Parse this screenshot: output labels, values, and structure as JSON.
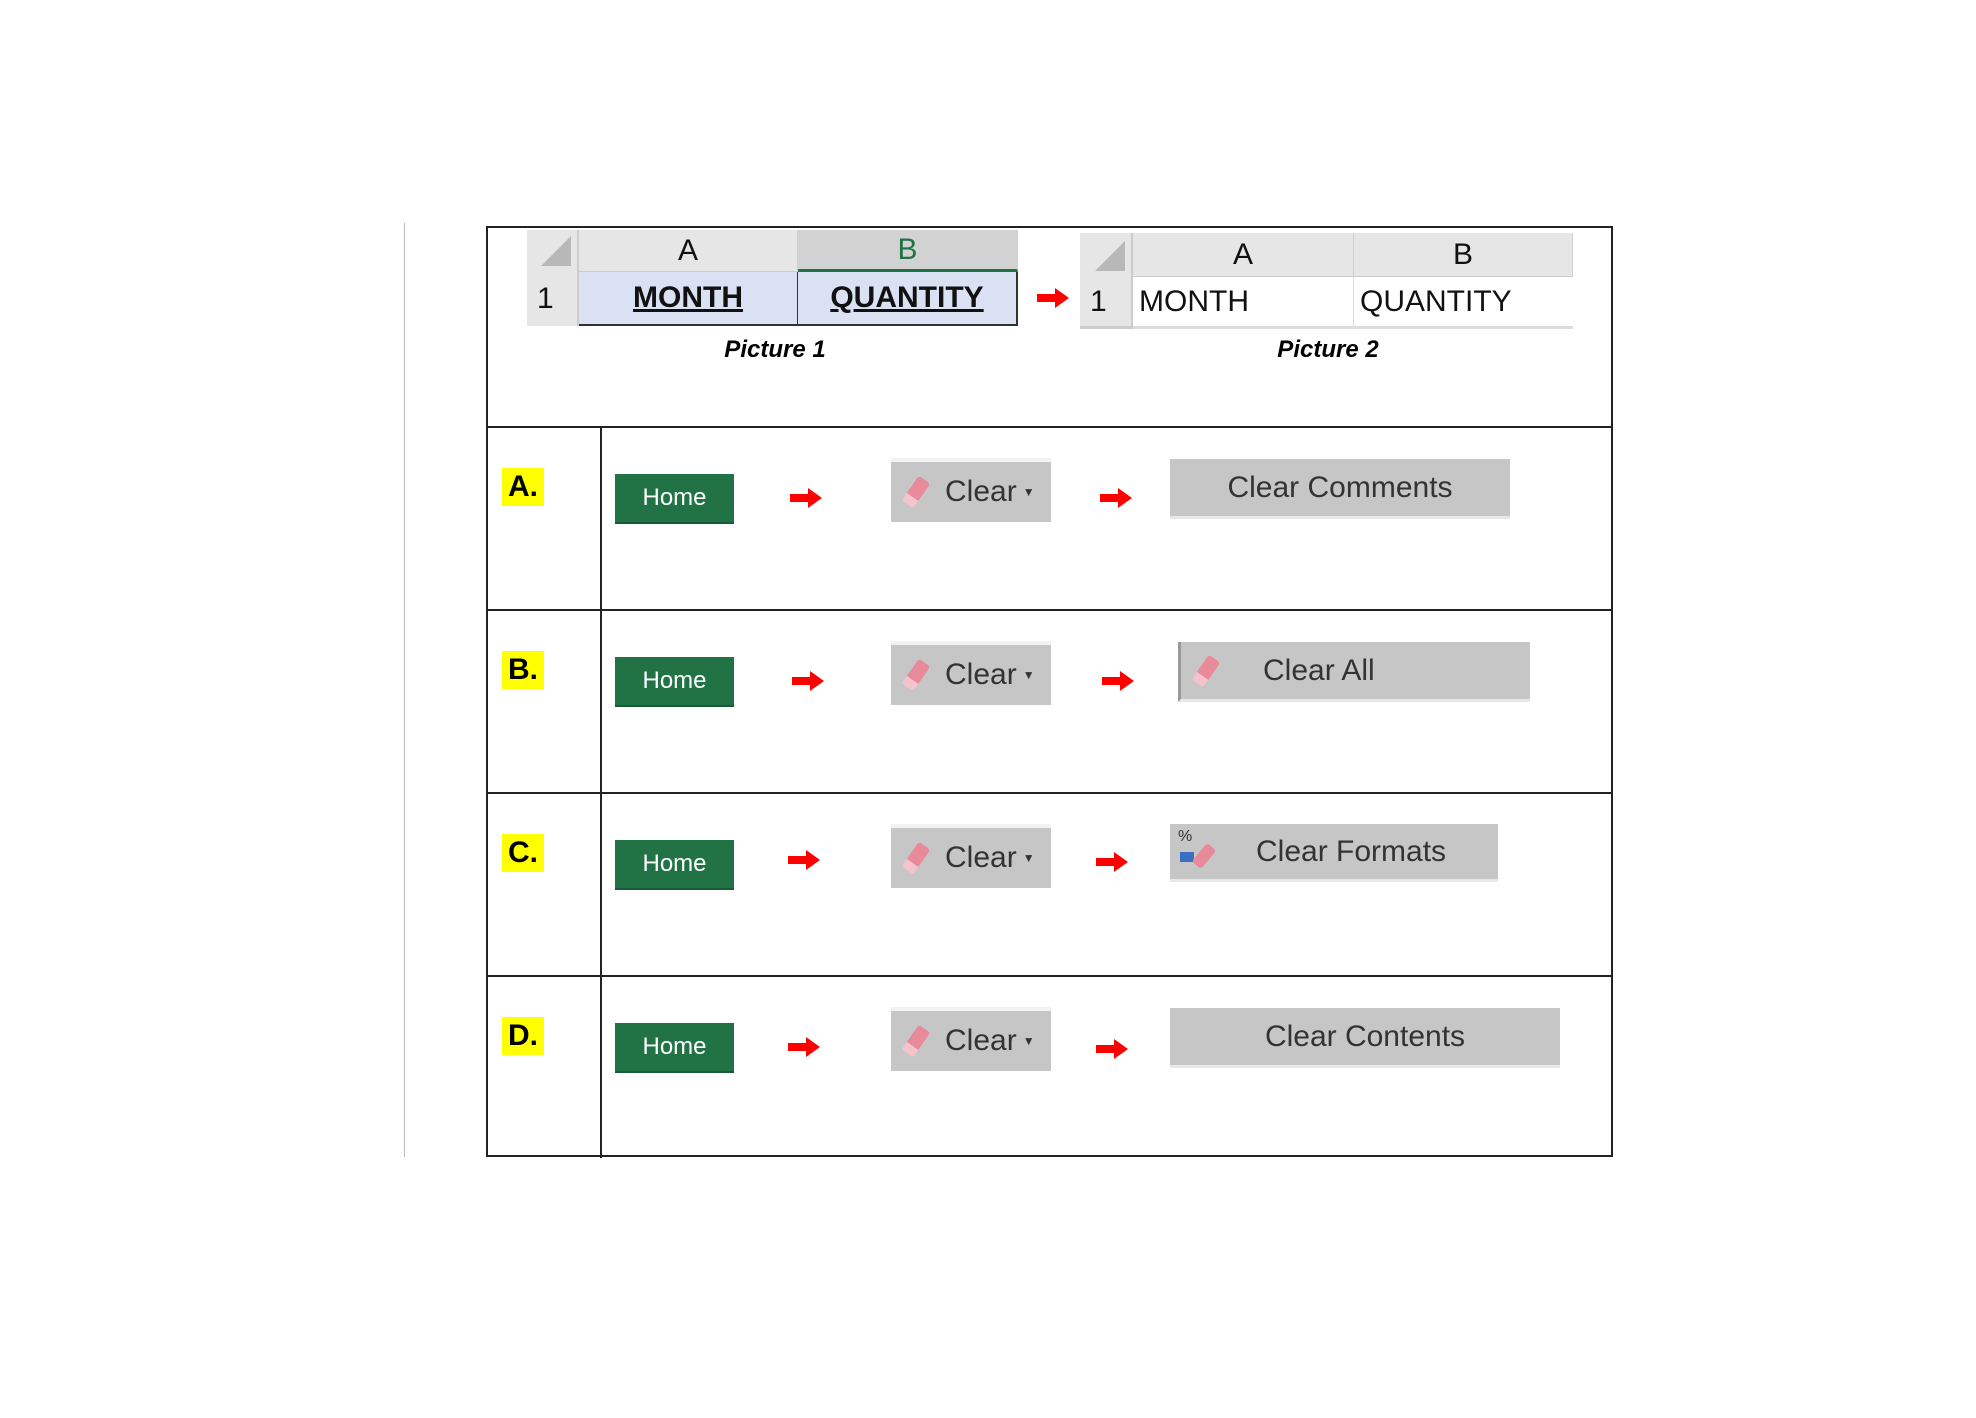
{
  "picture1": {
    "columns": [
      "A",
      "B"
    ],
    "row_number": "1",
    "cells": [
      "MONTH",
      "QUANTITY"
    ],
    "caption": "Picture 1"
  },
  "picture2": {
    "columns": [
      "A",
      "B"
    ],
    "row_number": "1",
    "cells": [
      "MONTH",
      "QUANTITY"
    ],
    "caption": "Picture 2"
  },
  "options": [
    {
      "letter": "A.",
      "home": "Home",
      "clear": "Clear",
      "final": "Clear Comments",
      "final_icon": "none"
    },
    {
      "letter": "B.",
      "home": "Home",
      "clear": "Clear",
      "final": "Clear All",
      "final_icon": "eraser-icon"
    },
    {
      "letter": "C.",
      "home": "Home",
      "clear": "Clear",
      "final": "Clear Formats",
      "final_icon": "clear-formats-icon"
    },
    {
      "letter": "D.",
      "home": "Home",
      "clear": "Clear",
      "final": "Clear Contents",
      "final_icon": "none"
    }
  ],
  "colors": {
    "home": "#217346",
    "highlight": "#ffff00",
    "arrow": "#ff0000",
    "button": "#c6c6c6"
  }
}
